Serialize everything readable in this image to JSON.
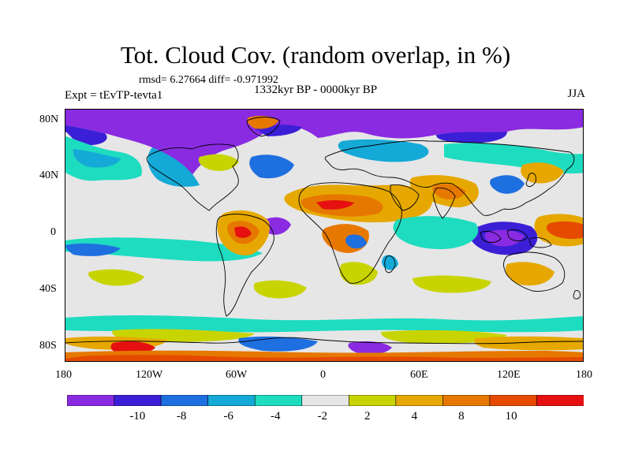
{
  "figure": {
    "title": "Tot. Cloud Cov. (random overlap, in %)",
    "stats": "rmsd= 6.27664 diff= -0.971992",
    "period": "1332kyr BP - 0000kyr BP",
    "experiment": "Expt = tEvTP-tevta1",
    "season": "JJA"
  },
  "map": {
    "projection": "cylindrical equidistant",
    "lon_range": [
      -180,
      180
    ],
    "lat_range": [
      -90,
      90
    ],
    "lat_ticks": [
      "80N",
      "40N",
      "0",
      "40S",
      "80S"
    ],
    "lat_tick_values": [
      80,
      40,
      0,
      -40,
      -80
    ],
    "lon_ticks": [
      "180",
      "120W",
      "60W",
      "0",
      "60E",
      "120E",
      "180"
    ],
    "lon_tick_values": [
      -180,
      -120,
      -60,
      0,
      60,
      120,
      180
    ],
    "background_color": "#e6e6e6",
    "coastline_color": "#000000"
  },
  "colorbar": {
    "colors": [
      "#8a2be2",
      "#3b1fd6",
      "#1e6fe0",
      "#14a9d6",
      "#1edcc0",
      "#e6e6e6",
      "#c8d400",
      "#e6a800",
      "#e67800",
      "#e64a00",
      "#e61010"
    ],
    "labels": [
      "-10",
      "-8",
      "-6",
      "-4",
      "-2",
      "2",
      "4",
      "8",
      "10"
    ]
  }
}
